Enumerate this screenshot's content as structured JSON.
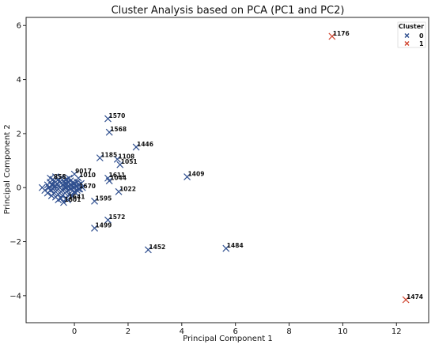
{
  "chart_data": {
    "type": "scatter",
    "title": "Cluster Analysis based on PCA (PC1 and PC2)",
    "xlabel": "Principal Component 1",
    "ylabel": "Principal Component 2",
    "xlim": [
      -1.8,
      13.2
    ],
    "ylim": [
      -5.0,
      6.3
    ],
    "xticks": [
      0,
      2,
      4,
      6,
      8,
      10,
      12
    ],
    "yticks": [
      -4,
      -2,
      0,
      2,
      4,
      6
    ],
    "grid": false,
    "legend": {
      "title": "Cluster",
      "placement": "top-right",
      "entries": [
        {
          "label": "0",
          "color": "#2f4f8f"
        },
        {
          "label": "1",
          "color": "#d0452f"
        }
      ]
    },
    "series": [
      {
        "cluster": "0",
        "color": "#2f4f8f",
        "points": [
          {
            "x": 1.25,
            "y": 2.55,
            "label": "1570"
          },
          {
            "x": 1.3,
            "y": 2.05,
            "label": "1568"
          },
          {
            "x": 2.3,
            "y": 1.5,
            "label": "1446"
          },
          {
            "x": 0.95,
            "y": 1.1,
            "label": "1185"
          },
          {
            "x": 1.6,
            "y": 1.05,
            "label": "1108"
          },
          {
            "x": 1.7,
            "y": 0.85,
            "label": "1051"
          },
          {
            "x": 4.2,
            "y": 0.4,
            "label": "1409"
          },
          {
            "x": 1.25,
            "y": 0.35,
            "label": "1611"
          },
          {
            "x": 1.3,
            "y": 0.25,
            "label": "1044"
          },
          {
            "x": 1.65,
            "y": -0.15,
            "label": "1022"
          },
          {
            "x": 0.0,
            "y": 0.5,
            "label": "9017"
          },
          {
            "x": 0.15,
            "y": 0.35,
            "label": "1010"
          },
          {
            "x": 0.15,
            "y": -0.05,
            "label": "1670"
          },
          {
            "x": -0.8,
            "y": 0.3,
            "label": "858"
          },
          {
            "x": -0.25,
            "y": -0.45,
            "label": "1641"
          },
          {
            "x": -0.4,
            "y": -0.55,
            "label": "1601"
          },
          {
            "x": 0.75,
            "y": -0.5,
            "label": "1595"
          },
          {
            "x": 1.25,
            "y": -1.2,
            "label": "1572"
          },
          {
            "x": 0.75,
            "y": -1.5,
            "label": "1499"
          },
          {
            "x": 2.75,
            "y": -2.3,
            "label": "1452"
          },
          {
            "x": 5.65,
            "y": -2.25,
            "label": "1484"
          }
        ],
        "cloud": [
          [
            -1.2,
            0.0
          ],
          [
            -1.1,
            -0.1
          ],
          [
            -1.0,
            0.1
          ],
          [
            -1.0,
            -0.2
          ],
          [
            -0.95,
            0.0
          ],
          [
            -0.9,
            0.2
          ],
          [
            -0.9,
            -0.1
          ],
          [
            -0.85,
            -0.3
          ],
          [
            -0.8,
            0.1
          ],
          [
            -0.8,
            -0.05
          ],
          [
            -0.75,
            0.25
          ],
          [
            -0.75,
            -0.2
          ],
          [
            -0.7,
            0.05
          ],
          [
            -0.7,
            -0.35
          ],
          [
            -0.65,
            0.15
          ],
          [
            -0.65,
            -0.1
          ],
          [
            -0.6,
            0.3
          ],
          [
            -0.6,
            -0.25
          ],
          [
            -0.55,
            0.0
          ],
          [
            -0.55,
            0.2
          ],
          [
            -0.5,
            -0.15
          ],
          [
            -0.5,
            0.35
          ],
          [
            -0.45,
            0.1
          ],
          [
            -0.45,
            -0.3
          ],
          [
            -0.4,
            0.25
          ],
          [
            -0.4,
            -0.05
          ],
          [
            -0.35,
            0.15
          ],
          [
            -0.35,
            -0.2
          ],
          [
            -0.3,
            0.0
          ],
          [
            -0.3,
            0.3
          ],
          [
            -0.25,
            -0.1
          ],
          [
            -0.25,
            0.2
          ],
          [
            -0.2,
            0.05
          ],
          [
            -0.2,
            -0.25
          ],
          [
            -0.15,
            0.25
          ],
          [
            -0.15,
            -0.05
          ],
          [
            -0.1,
            0.1
          ],
          [
            -0.1,
            -0.3
          ],
          [
            -0.05,
            0.0
          ],
          [
            -0.05,
            0.2
          ],
          [
            0.0,
            -0.15
          ],
          [
            0.0,
            0.15
          ],
          [
            0.05,
            0.05
          ],
          [
            0.05,
            -0.2
          ],
          [
            0.1,
            0.2
          ],
          [
            0.1,
            -0.1
          ],
          [
            0.15,
            0.1
          ],
          [
            0.2,
            -0.05
          ],
          [
            0.25,
            0.15
          ],
          [
            0.3,
            0.0
          ],
          [
            -0.9,
            0.35
          ],
          [
            -0.7,
            0.4
          ],
          [
            -0.5,
            -0.4
          ],
          [
            -0.3,
            -0.4
          ],
          [
            -0.6,
            -0.45
          ],
          [
            -0.85,
            0.1
          ],
          [
            -0.65,
            0.0
          ],
          [
            -0.45,
            -0.1
          ],
          [
            -0.35,
            0.05
          ],
          [
            -0.2,
            0.35
          ]
        ]
      },
      {
        "cluster": "1",
        "color": "#d0452f",
        "points": [
          {
            "x": 9.6,
            "y": 5.6,
            "label": "1176"
          },
          {
            "x": 12.35,
            "y": -4.15,
            "label": "1474"
          }
        ]
      }
    ]
  }
}
